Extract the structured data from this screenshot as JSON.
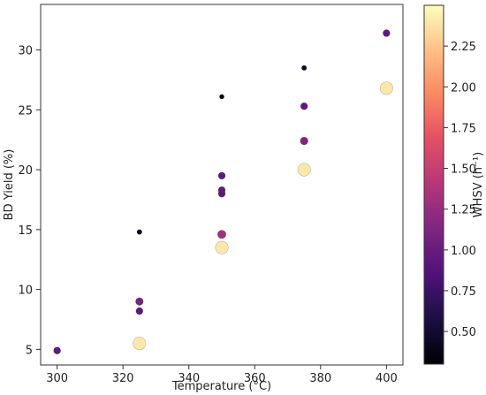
{
  "chart_data": {
    "type": "scatter",
    "xlabel": "Temperature (°C)",
    "ylabel": "BD Yield (%)",
    "xlim": [
      295,
      405
    ],
    "ylim": [
      3.7,
      33.8
    ],
    "x_ticks": [
      "300",
      "320",
      "340",
      "360",
      "380",
      "400"
    ],
    "y_ticks": [
      "5",
      "10",
      "15",
      "20",
      "25",
      "30"
    ],
    "grid": false,
    "colorbar": {
      "label": "WHSV (h⁻¹)",
      "colormap": "magma",
      "range": [
        0.3,
        2.5
      ],
      "ticks": [
        "0.50",
        "0.75",
        "1.00",
        "1.25",
        "1.50",
        "1.75",
        "2.00",
        "2.25"
      ]
    },
    "points": [
      {
        "x": 300,
        "y": 4.9,
        "whsv": 0.95
      },
      {
        "x": 325,
        "y": 5.5,
        "whsv": 2.4
      },
      {
        "x": 325,
        "y": 8.2,
        "whsv": 0.95
      },
      {
        "x": 325,
        "y": 9.0,
        "whsv": 1.1
      },
      {
        "x": 325,
        "y": 14.8,
        "whsv": 0.45
      },
      {
        "x": 350,
        "y": 13.5,
        "whsv": 2.4
      },
      {
        "x": 350,
        "y": 14.6,
        "whsv": 1.3
      },
      {
        "x": 350,
        "y": 18.0,
        "whsv": 0.95
      },
      {
        "x": 350,
        "y": 18.3,
        "whsv": 0.95
      },
      {
        "x": 350,
        "y": 19.5,
        "whsv": 0.95
      },
      {
        "x": 350,
        "y": 26.1,
        "whsv": 0.35
      },
      {
        "x": 375,
        "y": 20.0,
        "whsv": 2.4
      },
      {
        "x": 375,
        "y": 22.4,
        "whsv": 1.15
      },
      {
        "x": 375,
        "y": 25.3,
        "whsv": 0.95
      },
      {
        "x": 375,
        "y": 28.5,
        "whsv": 0.45
      },
      {
        "x": 400,
        "y": 26.8,
        "whsv": 2.4
      },
      {
        "x": 400,
        "y": 31.4,
        "whsv": 0.95
      }
    ]
  }
}
